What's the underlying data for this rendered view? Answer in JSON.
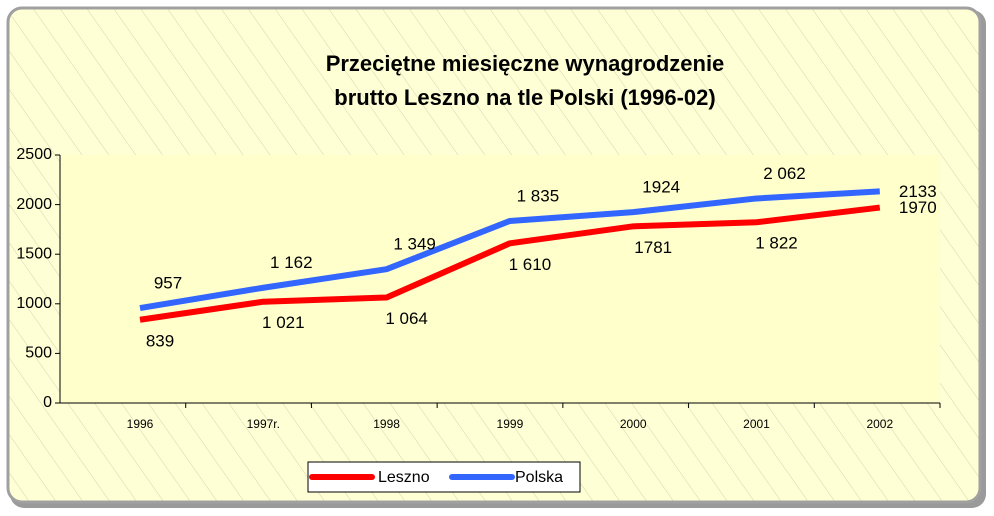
{
  "chart_data": {
    "type": "line",
    "title": [
      "Przeciętne miesięczne wynagrodzenie",
      "brutto Leszno na tle Polski (1996-02)"
    ],
    "categories": [
      "1996",
      "1997r.",
      "1998",
      "1999",
      "2000",
      "2001",
      "2002"
    ],
    "series": [
      {
        "name": "Leszno",
        "color": "#ff0000",
        "values": [
          839,
          1021,
          1064,
          1610,
          1781,
          1822,
          1970
        ],
        "value_labels": [
          "839",
          "1 021",
          "1 064",
          "1 610",
          "1781",
          "1 822",
          "1970"
        ]
      },
      {
        "name": "Polska",
        "color": "#3366ff",
        "values": [
          957,
          1162,
          1349,
          1835,
          1924,
          2062,
          2133
        ],
        "value_labels": [
          "957",
          "1 162",
          "1 349",
          "1 835",
          "1924",
          "2 062",
          "2133"
        ]
      }
    ],
    "ylim": [
      0,
      2500
    ],
    "yticks": [
      0,
      500,
      1000,
      1500,
      2000,
      2500
    ],
    "legend": "bottom"
  }
}
